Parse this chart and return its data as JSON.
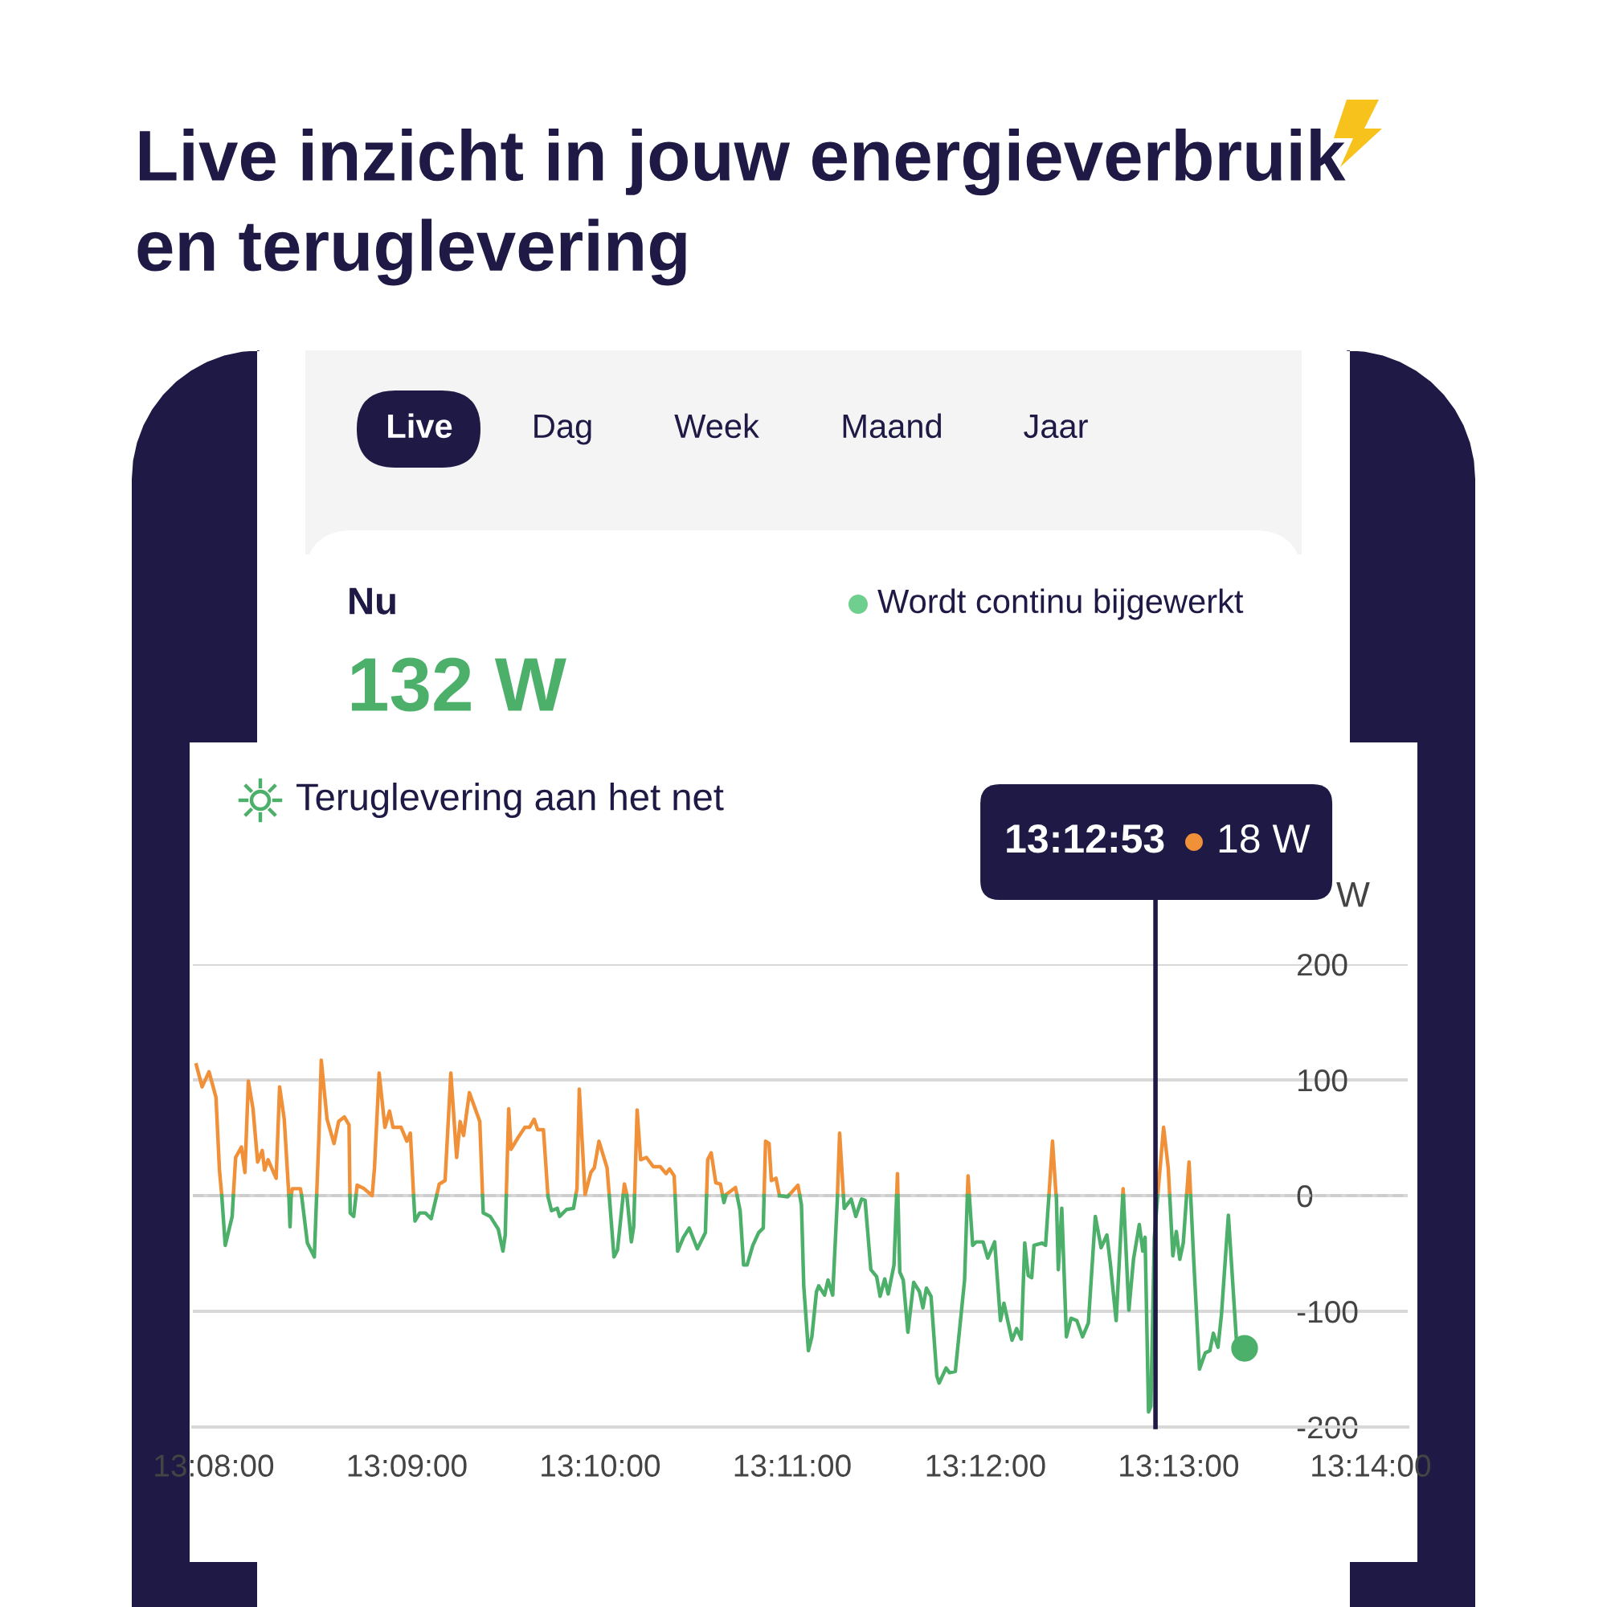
{
  "chart_data": {
    "type": "line",
    "title": "Live inzicht in jouw energieverbruik\nen teruglevering",
    "ylabel": "W",
    "annotations": [
      "Live",
      "Dag",
      "Week",
      "Maand",
      "Jaar",
      "Nu",
      "Wordt continu bijgewerkt",
      "132 W",
      "Teruglevering aan het net",
      "18 W"
    ],
    "series": [
      {
        "color": "#f0913a",
        "x": [
          13.1318,
          13.1323,
          13.1329,
          13.1335,
          13.1338,
          13.134,
          13.1345,
          13.135,
          13.1352,
          13.1357,
          13.136,
          13.1363,
          13.1367,
          13.1371,
          13.1375,
          13.1377,
          13.138,
          13.1387,
          13.139,
          13.1394,
          13.1398,
          13.1399,
          13.14,
          13.1401,
          13.1408,
          13.1409,
          13.1415,
          13.1422,
          13.1424,
          13.1426,
          13.1431,
          13.1437,
          13.1441,
          13.1446,
          13.145,
          13.14508,
          13.1452,
          13.1456,
          13.1457,
          13.1463,
          13.147,
          13.1472,
          13.1476,
          13.1481,
          13.1485,
          13.1488,
          13.1495,
          13.15,
          13.1503,
          13.15058,
          13.1515,
          13.15257,
          13.1528,
          13.1533,
          13.1538,
          13.1543,
          13.1546,
          13.1549,
          13.1554,
          13.1563,
          13.15654,
          13.1575,
          13.15859,
          13.1588,
          13.159,
          13.1596,
          13.1602,
          13.1606,
          13.161,
          13.1613,
          13.1618,
          13.16219,
          13.1635,
          13.16459,
          13.1647,
          13.1649,
          13.1654,
          13.1659,
          13.1662,
          13.1666,
          13.1673,
          13.16749,
          13.168,
          13.16869,
          13.1688,
          13.169,
          13.16901,
          13.1695,
          13.16968,
          13.1699,
          13.1702,
          13.1707,
          13.1713,
          13.1719,
          13.1724,
          13.1727,
          13.1731,
          13.17318,
          13.1745,
          13.1759,
          13.176,
          13.1763,
          13.1767,
          13.1771,
          13.17729,
          13.1774,
          13.17757,
          13.1776,
          13.1784,
          13.17854,
          13.18,
          13.18087,
          13.181,
          13.1813,
          13.1815,
          13.1819,
          13.1822,
          13.1826,
          13.18299,
          13.1838,
          13.18396,
          13.1856,
          13.18721,
          13.1874,
          13.18773,
          13.19,
          13.19233,
          13.1924,
          13.19244,
          13.196,
          13.19844,
          13.1985,
          13.19861,
          13.202,
          13.20549,
          13.2058,
          13.2061,
          13.20613,
          13.209,
          13.21187,
          13.2119,
          13.21193,
          13.2135,
          13.21489,
          13.2149,
          13.2154,
          13.2158,
          13.21593,
          13.2165,
          13.21739,
          13.2176,
          13.21774
        ],
        "values": [
          113,
          94,
          107,
          85,
          22,
          0,
          null,
          0,
          33,
          42,
          20,
          99,
          75,
          29,
          39,
          22,
          31,
          15,
          94,
          66,
          0,
          null,
          0,
          6,
          6,
          0,
          null,
          0,
          52,
          117,
          66,
          45,
          64,
          68,
          61,
          0,
          null,
          0,
          9,
          6,
          0,
          24,
          106,
          59,
          73,
          59,
          59,
          47,
          54,
          0,
          null,
          0,
          10,
          13,
          106,
          33,
          64,
          52,
          89,
          64,
          0,
          null,
          0,
          75,
          40,
          50,
          59,
          59,
          66,
          57,
          57,
          0,
          null,
          0,
          6,
          92,
          1,
          20,
          24,
          47,
          24,
          0,
          null,
          0,
          10,
          1,
          0,
          null,
          0,
          74,
          31,
          33,
          25,
          25,
          19,
          23,
          17,
          0,
          null,
          0,
          31,
          37,
          11,
          10,
          0,
          null,
          0,
          1,
          7,
          0,
          null,
          0,
          47,
          45,
          13,
          15,
          0,
          null,
          0,
          9,
          0,
          null,
          0,
          54,
          0,
          null,
          0,
          19,
          0,
          null,
          0,
          17,
          0,
          null,
          0,
          47,
          1,
          0,
          null,
          0,
          6,
          0,
          null,
          0,
          1,
          59,
          24,
          0,
          null,
          0,
          29,
          0
        ]
      },
      {
        "color": "#4caf6a",
        "x": [
          13.134,
          13.1343,
          13.1349,
          13.135,
          13.137,
          13.1398,
          13.1399,
          13.14,
          13.14045,
          13.1409,
          13.1414,
          13.142,
          13.1422,
          13.1435,
          13.14508,
          13.1451,
          13.1454,
          13.1456,
          13.149,
          13.15058,
          13.1507,
          13.1511,
          13.1516,
          13.1521,
          13.15257,
          13.1545,
          13.15654,
          13.1566,
          13.1572,
          13.1579,
          13.1583,
          13.1585,
          13.15859,
          13.16,
          13.16219,
          13.1622,
          13.1625,
          13.163,
          13.1632,
          13.1638,
          13.1644,
          13.16459,
          13.166,
          13.16749,
          13.1679,
          13.1682,
          13.16869,
          13.16885,
          13.16901,
          13.1694,
          13.1696,
          13.16968,
          13.1715,
          13.17318,
          13.1734,
          13.1739,
          13.1744,
          13.1751,
          13.1758,
          13.1759,
          13.1765,
          13.17729,
          13.1774,
          13.17757,
          13.178,
          13.17854,
          13.1788,
          13.1791,
          13.1794,
          13.1799,
          13.1804,
          13.1808,
          13.18087,
          13.1817,
          13.1822,
          13.1829,
          13.18299,
          13.1834,
          13.18396,
          13.1841,
          13.1843,
          13.1847,
          13.185,
          13.1854,
          13.1856,
          13.1861,
          13.1864,
          13.1868,
          13.1872,
          13.18721,
          13.1873,
          13.18773,
          13.1878,
          13.1884,
          13.1888,
          13.1893,
          13.1896,
          13.1901,
          13.1906,
          13.1909,
          13.1913,
          13.1916,
          13.1921,
          13.19233,
          13.19238,
          13.19244,
          13.1926,
          13.1929,
          13.1933,
          13.1938,
          13.1943,
          13.1946,
          13.1949,
          13.1953,
          13.1958,
          13.196,
          13.1966,
          13.1969,
          13.1974,
          13.1982,
          13.19844,
          13.1985,
          13.19861,
          13.1989,
          13.1992,
          13.1998,
          13.2002,
          13.2008,
          13.2013,
          13.2016,
          13.2023,
          13.2027,
          13.2031,
          13.2034,
          13.2037,
          13.204,
          13.2042,
          13.2049,
          13.2052,
          13.2054,
          13.20549,
          13.2058,
          13.20613,
          13.2063,
          13.2066,
          13.207,
          13.2074,
          13.2079,
          13.2084,
          13.2089,
          13.2095,
          13.21,
          13.2105,
          13.2108,
          13.2113,
          13.21187,
          13.2119,
          13.21193,
          13.2124,
          13.2128,
          13.2133,
          13.2136,
          13.2138,
          13.2141,
          13.2143,
          13.2146,
          13.21489,
          13.2152,
          13.21593,
          13.2162,
          13.2165,
          13.2168,
          13.2171,
          13.21739,
          13.21755,
          13.21774,
          13.218,
          13.2185,
          13.219,
          13.2194,
          13.2197,
          13.2201,
          13.2204,
          13.221,
          13.2217,
          13.2224
        ],
        "values": [
          0,
          -43,
          -18,
          0,
          null,
          0,
          -27,
          0,
          null,
          0,
          -41,
          -53,
          0,
          null,
          0,
          -15,
          -18,
          0,
          null,
          0,
          -22,
          -15,
          -15,
          -20,
          0,
          null,
          0,
          -15,
          -18,
          -29,
          -48,
          -34,
          0,
          null,
          0,
          -1,
          -13,
          -11,
          -18,
          -12,
          -11,
          0,
          null,
          0,
          -53,
          -47,
          0,
          null,
          0,
          -40,
          -27,
          0,
          null,
          0,
          -48,
          -36,
          -28,
          -46,
          -32,
          0,
          null,
          0,
          -6,
          0,
          null,
          0,
          -13,
          -60,
          -60,
          -43,
          -32,
          -28,
          0,
          null,
          0,
          -1,
          0,
          null,
          0,
          -8,
          -78,
          -134,
          -122,
          -83,
          -78,
          -86,
          -73,
          -86,
          -4,
          0,
          null,
          0,
          -11,
          -3,
          -18,
          -3,
          -4,
          -64,
          -70,
          -87,
          -72,
          -85,
          -60,
          0,
          null,
          0,
          -66,
          -73,
          -118,
          -75,
          -83,
          -97,
          -80,
          -87,
          -156,
          -162,
          -149,
          -153,
          -152,
          -73,
          0,
          null,
          0,
          -43,
          -40,
          -40,
          -54,
          -40,
          -108,
          -93,
          -125,
          -115,
          -124,
          -41,
          -69,
          -71,
          -43,
          -41,
          -43,
          -13,
          0,
          null,
          0,
          -64,
          -11,
          -122,
          -106,
          -108,
          -122,
          -110,
          -18,
          -45,
          -34,
          -59,
          -108,
          0,
          null,
          0,
          -99,
          -55,
          -25,
          -48,
          -36,
          -187,
          -182,
          -36,
          0,
          null,
          0,
          -52,
          -31,
          -55,
          -41,
          0,
          null,
          0,
          -55,
          -150,
          -136,
          -134,
          -119,
          -131,
          -103,
          -17,
          -126,
          -132
        ]
      }
    ],
    "xlim": [
      13.1315,
      13.2365
    ],
    "xticks": [
      {
        "value": 13.1333,
        "label": "13:08:00"
      },
      {
        "value": 13.15,
        "label": "13:09:00"
      },
      {
        "value": 13.1667,
        "label": "13:10:00"
      },
      {
        "value": 13.1833,
        "label": "13:11:00"
      },
      {
        "value": 13.2,
        "label": "13:12:00"
      },
      {
        "value": 13.2167,
        "label": "13:13:00"
      },
      {
        "value": 13.2333,
        "label": "13:14:00"
      }
    ],
    "ylim": [
      -200,
      200
    ],
    "yticks": [
      -200,
      -100,
      0,
      100,
      200
    ],
    "ref_lines": [
      {
        "axis": "y",
        "value": 0,
        "color": "#cccccc",
        "line_style": "dashed"
      },
      {
        "axis": "x",
        "value": 13.2147,
        "label": "13:12:53",
        "color": "#1e1a45"
      }
    ],
    "grid": "y",
    "marker": "none",
    "line_style": "solid"
  }
}
